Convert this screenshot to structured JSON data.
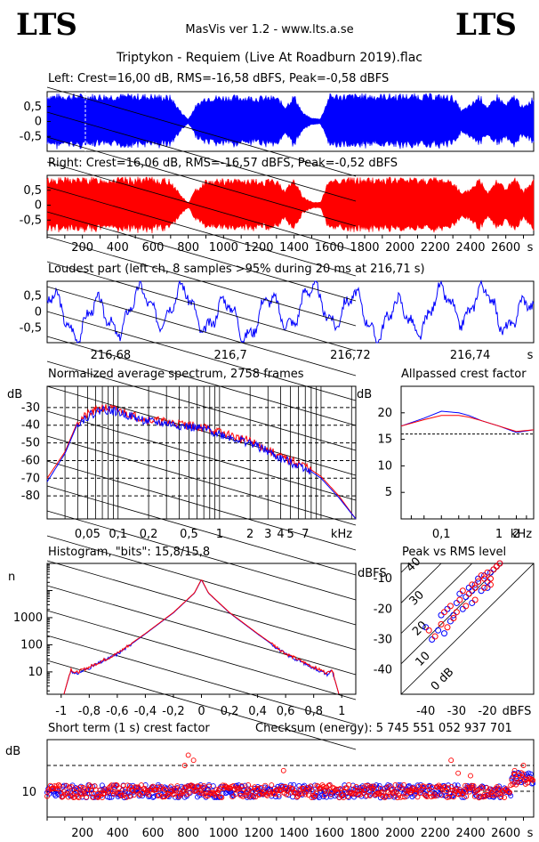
{
  "header": {
    "logo_left": "LTS",
    "logo_right": "LTS",
    "app_line": "MasVis ver 1.2 - www.lts.a.se",
    "file_title": "Triptykon - Requiem (Live At Roadburn 2019).flac"
  },
  "panels": {
    "left": "Left: Crest=16,00 dB, RMS=-16,58 dBFS, Peak=-0,58 dBFS",
    "right": "Right: Crest=16,06 dB, RMS=-16,57 dBFS, Peak=-0,52 dBFS",
    "loudest": "Loudest part (left  ch, 8 samples >95% during 20 ms at 216,71 s)",
    "spectrum": "Normalized average spectrum, 2758 frames",
    "allpass": "Allpassed crest factor",
    "histogram": "Histogram, \"bits\": 15,8/15,8",
    "peakrms": "Peak vs RMS level",
    "shortterm": "Short term (1 s) crest factor",
    "checksum": "Checksum (energy):  5 745 551 052 937 701"
  },
  "colors": {
    "left": "#0000ff",
    "right": "#ff0000"
  },
  "chart_data": [
    {
      "type": "area",
      "id": "left_waveform",
      "title": "Left: Crest=16,00 dB, RMS=-16,58 dBFS, Peak=-0,58 dBFS",
      "yticks": [
        "0,5",
        "0",
        "-0,5"
      ],
      "ylim": [
        -1,
        1
      ],
      "xlim": [
        0,
        2758
      ],
      "xticks": [
        "200",
        "400",
        "600",
        "800",
        "1000",
        "1200",
        "1400",
        "1600",
        "1800",
        "2000",
        "2200",
        "2400",
        "2600",
        "s"
      ],
      "x": [
        0,
        100,
        200,
        300,
        400,
        500,
        600,
        700,
        760,
        800,
        840,
        900,
        1000,
        1100,
        1200,
        1300,
        1350,
        1400,
        1450,
        1500,
        1550,
        1600,
        1700,
        1800,
        1900,
        2000,
        2100,
        2200,
        2300,
        2350,
        2400,
        2450,
        2500,
        2550,
        2600,
        2650,
        2700,
        2758
      ],
      "envelope": [
        0.95,
        0.95,
        0.95,
        0.95,
        0.95,
        0.95,
        0.95,
        0.9,
        0.35,
        0.08,
        0.55,
        0.9,
        0.9,
        0.9,
        0.88,
        0.88,
        0.55,
        0.95,
        0.3,
        0.12,
        0.1,
        0.95,
        0.95,
        0.95,
        0.95,
        0.95,
        0.95,
        0.95,
        0.9,
        0.4,
        0.6,
        0.95,
        0.5,
        0.95,
        0.6,
        0.95,
        0.5,
        0.9
      ]
    },
    {
      "type": "area",
      "id": "right_waveform",
      "title": "Right: Crest=16,06 dB, RMS=-16,57 dBFS, Peak=-0,52 dBFS",
      "yticks": [
        "0,5",
        "0",
        "-0,5"
      ],
      "ylim": [
        -1,
        1
      ],
      "xlim": [
        0,
        2758
      ],
      "x": [
        0,
        100,
        200,
        300,
        400,
        500,
        600,
        700,
        760,
        800,
        840,
        900,
        1000,
        1100,
        1200,
        1300,
        1350,
        1400,
        1450,
        1500,
        1550,
        1600,
        1700,
        1800,
        1900,
        2000,
        2100,
        2200,
        2300,
        2350,
        2400,
        2450,
        2500,
        2550,
        2600,
        2650,
        2700,
        2758
      ],
      "envelope": [
        0.95,
        0.95,
        0.95,
        0.95,
        0.95,
        0.95,
        0.95,
        0.9,
        0.35,
        0.08,
        0.55,
        0.9,
        0.9,
        0.9,
        0.88,
        0.88,
        0.55,
        0.95,
        0.3,
        0.12,
        0.1,
        0.95,
        0.95,
        0.95,
        0.95,
        0.95,
        0.95,
        0.95,
        0.9,
        0.4,
        0.6,
        0.95,
        0.5,
        0.95,
        0.6,
        0.95,
        0.5,
        0.9
      ]
    },
    {
      "type": "line",
      "id": "loudest_part",
      "title": "Loudest part (left  ch, 8 samples >95% during 20 ms at 216,71 s)",
      "xticks": [
        "216,68",
        "216,7",
        "216,72",
        "216,74",
        "s"
      ],
      "yticks": [
        "0,5",
        "0",
        "-0,5"
      ],
      "xlim": [
        216.6694,
        216.7506
      ],
      "ylim": [
        -0.95,
        0.95
      ]
    },
    {
      "type": "line",
      "id": "spectrum",
      "title": "Normalized average spectrum, 2758 frames",
      "ylabel": "dB",
      "yticks": [
        "-30",
        "-40",
        "-50",
        "-60",
        "-70",
        "-80"
      ],
      "xticks": [
        "0,05",
        "0,1",
        "0,2",
        "0,5",
        "1",
        "2",
        "3",
        "4",
        "5",
        "7",
        "kHz"
      ],
      "xlim": [
        0.02,
        22
      ],
      "ylim": [
        -93,
        -18
      ],
      "series": [
        {
          "color": "#ff0000",
          "x": [
            0.02,
            0.03,
            0.04,
            0.05,
            0.07,
            0.09,
            0.12,
            0.15,
            0.2,
            0.3,
            0.5,
            0.8,
            1,
            1.5,
            2,
            3,
            4,
            5,
            7,
            10,
            15,
            22
          ],
          "y": [
            -70,
            -55,
            -38,
            -34,
            -30,
            -31,
            -33,
            -35,
            -37,
            -38,
            -40,
            -42,
            -44,
            -47,
            -49,
            -54,
            -58,
            -60,
            -63,
            -69,
            -80,
            -93
          ]
        },
        {
          "color": "#0000ff",
          "x": [
            0.02,
            0.03,
            0.04,
            0.05,
            0.07,
            0.09,
            0.12,
            0.15,
            0.2,
            0.3,
            0.5,
            0.8,
            1,
            1.5,
            2,
            3,
            4,
            5,
            7,
            10,
            15,
            22
          ],
          "y": [
            -72,
            -56,
            -39,
            -35,
            -31,
            -32,
            -34,
            -36,
            -38,
            -39,
            -41,
            -43,
            -45,
            -48,
            -50,
            -55,
            -59,
            -61,
            -64,
            -70,
            -81,
            -93
          ]
        }
      ]
    },
    {
      "type": "line",
      "id": "allpassed_crest",
      "title": "Allpassed crest factor",
      "ylabel": "dB",
      "yticks": [
        "20",
        "15",
        "10",
        "5"
      ],
      "xticks": [
        "0,1",
        "1",
        "2",
        "kHz"
      ],
      "xlim": [
        0.02,
        4
      ],
      "ylim": [
        0,
        25
      ],
      "reference_line": 16,
      "series": [
        {
          "name": "",
          "color": "#0000ff",
          "x": [
            0.02,
            0.05,
            0.1,
            0.2,
            0.3,
            0.5,
            1,
            2,
            4
          ],
          "y": [
            17.5,
            19,
            20.3,
            20,
            19.5,
            18.5,
            17.5,
            16.3,
            16.8
          ]
        },
        {
          "name": "",
          "color": "#ff0000",
          "x": [
            0.02,
            0.05,
            0.1,
            0.2,
            0.3,
            0.5,
            1,
            2,
            4
          ],
          "y": [
            17.5,
            18.7,
            19.5,
            19.5,
            19.2,
            18.5,
            17.5,
            16.5,
            16.8
          ]
        }
      ]
    },
    {
      "type": "line",
      "id": "histogram",
      "title": "Histogram, \"bits\": 15,8/15,8",
      "ylabel": "n",
      "yticks": [
        "1000",
        "100",
        "10"
      ],
      "xticks": [
        "-1",
        "-0,8",
        "-0,6",
        "-0,4",
        "-0,2",
        "0",
        "0,2",
        "0,4",
        "0,6",
        "0,8",
        "1"
      ],
      "xlim": [
        -1.1,
        1.1
      ],
      "yscale": "log",
      "ylim": [
        1.5,
        100000
      ],
      "series": [
        {
          "color": "#0000ff",
          "x": [
            -0.98,
            -0.93,
            -0.9,
            -0.8,
            -0.6,
            -0.4,
            -0.2,
            -0.05,
            0,
            0.05,
            0.2,
            0.4,
            0.6,
            0.8,
            0.9,
            0.93,
            0.98
          ],
          "y": [
            1.5,
            12,
            8,
            14,
            45,
            250,
            1500,
            8000,
            25000,
            8000,
            1500,
            250,
            45,
            14,
            8,
            12,
            1.5
          ]
        },
        {
          "color": "#ff0000",
          "x": [
            -0.98,
            -0.93,
            -0.9,
            -0.8,
            -0.6,
            -0.4,
            -0.2,
            -0.05,
            0,
            0.05,
            0.2,
            0.4,
            0.6,
            0.8,
            0.9,
            0.93,
            0.98
          ],
          "y": [
            1.5,
            13,
            9,
            15,
            48,
            260,
            1550,
            8200,
            26000,
            8200,
            1550,
            260,
            48,
            15,
            9,
            13,
            1.5
          ]
        }
      ]
    },
    {
      "type": "scatter",
      "id": "peak_vs_rms",
      "title": "Peak vs RMS level",
      "ylabel": "dBFS",
      "xlabel": "dBFS",
      "yticks": [
        "-10",
        "-20",
        "-30",
        "-40"
      ],
      "xticks": [
        "-40",
        "-30",
        "-20",
        "dBFS"
      ],
      "xlim": [
        -48,
        -5
      ],
      "ylim": [
        -48,
        -5
      ],
      "diagonal_labels": [
        "40",
        "30",
        "20",
        "10",
        "0 dB"
      ],
      "points_left": [
        [
          -40,
          -26
        ],
        [
          -38,
          -30
        ],
        [
          -36,
          -27
        ],
        [
          -35,
          -22
        ],
        [
          -33,
          -20
        ],
        [
          -32,
          -24
        ],
        [
          -30,
          -18
        ],
        [
          -29,
          -15
        ],
        [
          -28,
          -20
        ],
        [
          -27,
          -16
        ],
        [
          -26,
          -13
        ],
        [
          -25,
          -18
        ],
        [
          -24,
          -12
        ],
        [
          -23,
          -10
        ],
        [
          -22,
          -14
        ],
        [
          -21,
          -9
        ],
        [
          -20,
          -11
        ],
        [
          -19,
          -8
        ],
        [
          -18,
          -7
        ],
        [
          -17,
          -6
        ],
        [
          -16,
          -5
        ],
        [
          -34,
          -28
        ],
        [
          -31,
          -22
        ],
        [
          -25,
          -14
        ],
        [
          -20,
          -13
        ]
      ],
      "points_right": [
        [
          -39,
          -27
        ],
        [
          -37,
          -29
        ],
        [
          -35,
          -25
        ],
        [
          -34,
          -21
        ],
        [
          -32,
          -19
        ],
        [
          -31,
          -23
        ],
        [
          -29,
          -17
        ],
        [
          -28,
          -14
        ],
        [
          -27,
          -19
        ],
        [
          -26,
          -15
        ],
        [
          -25,
          -12
        ],
        [
          -24,
          -17
        ],
        [
          -23,
          -11
        ],
        [
          -22,
          -9
        ],
        [
          -21,
          -13
        ],
        [
          -20,
          -8
        ],
        [
          -19,
          -10
        ],
        [
          -18,
          -7
        ],
        [
          -17,
          -6
        ],
        [
          -16,
          -5
        ],
        [
          -33,
          -26
        ],
        [
          -30,
          -21
        ],
        [
          -24,
          -13
        ],
        [
          -19,
          -12
        ],
        [
          -21,
          -10
        ]
      ]
    },
    {
      "type": "scatter",
      "id": "short_term_crest",
      "title": "Short term (1 s) crest factor",
      "ylabel": "dB",
      "yticks": [
        "10"
      ],
      "xticks": [
        "200",
        "400",
        "600",
        "800",
        "1000",
        "1200",
        "1400",
        "1600",
        "1800",
        "2000",
        "2200",
        "2400",
        "2600",
        "s"
      ],
      "xlim": [
        0,
        2758
      ],
      "ylim": [
        0,
        30
      ],
      "reference_lines": [
        10,
        20
      ],
      "baseline": 10,
      "spikes": [
        [
          780,
          20
        ],
        [
          800,
          24
        ],
        [
          830,
          22
        ],
        [
          1340,
          18
        ],
        [
          2290,
          22
        ],
        [
          2330,
          17
        ],
        [
          2400,
          16
        ],
        [
          2650,
          18
        ],
        [
          2700,
          20
        ]
      ]
    }
  ]
}
